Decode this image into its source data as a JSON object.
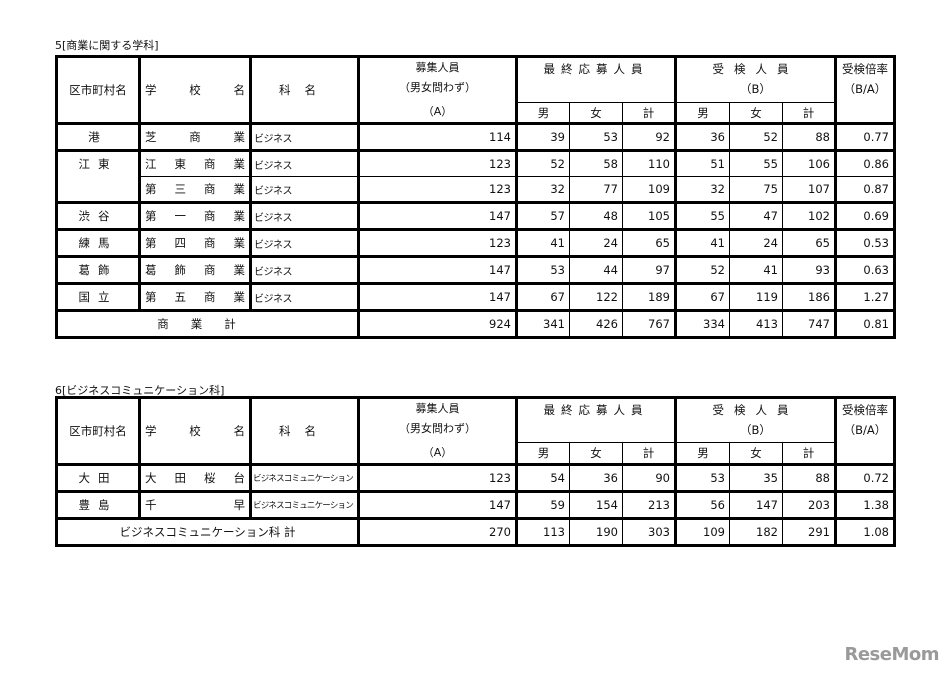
{
  "headers": {
    "ward": "区市町村名",
    "school": "学校名",
    "course": "科名",
    "quota_l1": "募集人員",
    "quota_l2": "（男女問わず）",
    "quota_l3": "（A）",
    "applicants": "最終応募人員",
    "examinees": "受検人員",
    "examinees_sub": "（B）",
    "ratio": "受検倍率",
    "ratio_sub": "（B/A）",
    "male": "男",
    "female": "女",
    "total": "計"
  },
  "sections": [
    {
      "title": "5[商業に関する学科]",
      "rows": [
        {
          "ward": "港",
          "school": "芝商業",
          "course": "ビジネス",
          "quota": "114",
          "app_m": "39",
          "app_f": "53",
          "app_t": "92",
          "exam_m": "36",
          "exam_f": "52",
          "exam_t": "88",
          "ratio": "0.77"
        },
        {
          "ward": "江東",
          "school": "江東商業",
          "course": "ビジネス",
          "quota": "123",
          "app_m": "52",
          "app_f": "58",
          "app_t": "110",
          "exam_m": "51",
          "exam_f": "55",
          "exam_t": "106",
          "ratio": "0.86"
        },
        {
          "ward": "",
          "school": "第三商業",
          "course": "ビジネス",
          "quota": "123",
          "app_m": "32",
          "app_f": "77",
          "app_t": "109",
          "exam_m": "32",
          "exam_f": "75",
          "exam_t": "107",
          "ratio": "0.87"
        },
        {
          "ward": "渋谷",
          "school": "第一商業",
          "course": "ビジネス",
          "quota": "147",
          "app_m": "57",
          "app_f": "48",
          "app_t": "105",
          "exam_m": "55",
          "exam_f": "47",
          "exam_t": "102",
          "ratio": "0.69"
        },
        {
          "ward": "練馬",
          "school": "第四商業",
          "course": "ビジネス",
          "quota": "123",
          "app_m": "41",
          "app_f": "24",
          "app_t": "65",
          "exam_m": "41",
          "exam_f": "24",
          "exam_t": "65",
          "ratio": "0.53"
        },
        {
          "ward": "葛飾",
          "school": "葛飾商業",
          "course": "ビジネス",
          "quota": "147",
          "app_m": "53",
          "app_f": "44",
          "app_t": "97",
          "exam_m": "52",
          "exam_f": "41",
          "exam_t": "93",
          "ratio": "0.63"
        },
        {
          "ward": "国立",
          "school": "第五商業",
          "course": "ビジネス",
          "quota": "147",
          "app_m": "67",
          "app_f": "122",
          "app_t": "189",
          "exam_m": "67",
          "exam_f": "119",
          "exam_t": "186",
          "ratio": "1.27"
        }
      ],
      "total": {
        "label": "商業計",
        "quota": "924",
        "app_m": "341",
        "app_f": "426",
        "app_t": "767",
        "exam_m": "334",
        "exam_f": "413",
        "exam_t": "747",
        "ratio": "0.81"
      }
    },
    {
      "title": "6[ビジネスコミュニケーション科]",
      "rows": [
        {
          "ward": "大田",
          "school": "大田桜台",
          "course": "ビジネスコミュニケーション",
          "quota": "123",
          "app_m": "54",
          "app_f": "36",
          "app_t": "90",
          "exam_m": "53",
          "exam_f": "35",
          "exam_t": "88",
          "ratio": "0.72"
        },
        {
          "ward": "豊島",
          "school": "千早",
          "course": "ビジネスコミュニケーション",
          "quota": "147",
          "app_m": "59",
          "app_f": "154",
          "app_t": "213",
          "exam_m": "56",
          "exam_f": "147",
          "exam_t": "203",
          "ratio": "1.38"
        }
      ],
      "total": {
        "label": "ビジネスコミュニケーション科 計",
        "quota": "270",
        "app_m": "113",
        "app_f": "190",
        "app_t": "303",
        "exam_m": "109",
        "exam_f": "182",
        "exam_t": "291",
        "ratio": "1.08"
      }
    }
  ],
  "watermark": "ReseMom"
}
